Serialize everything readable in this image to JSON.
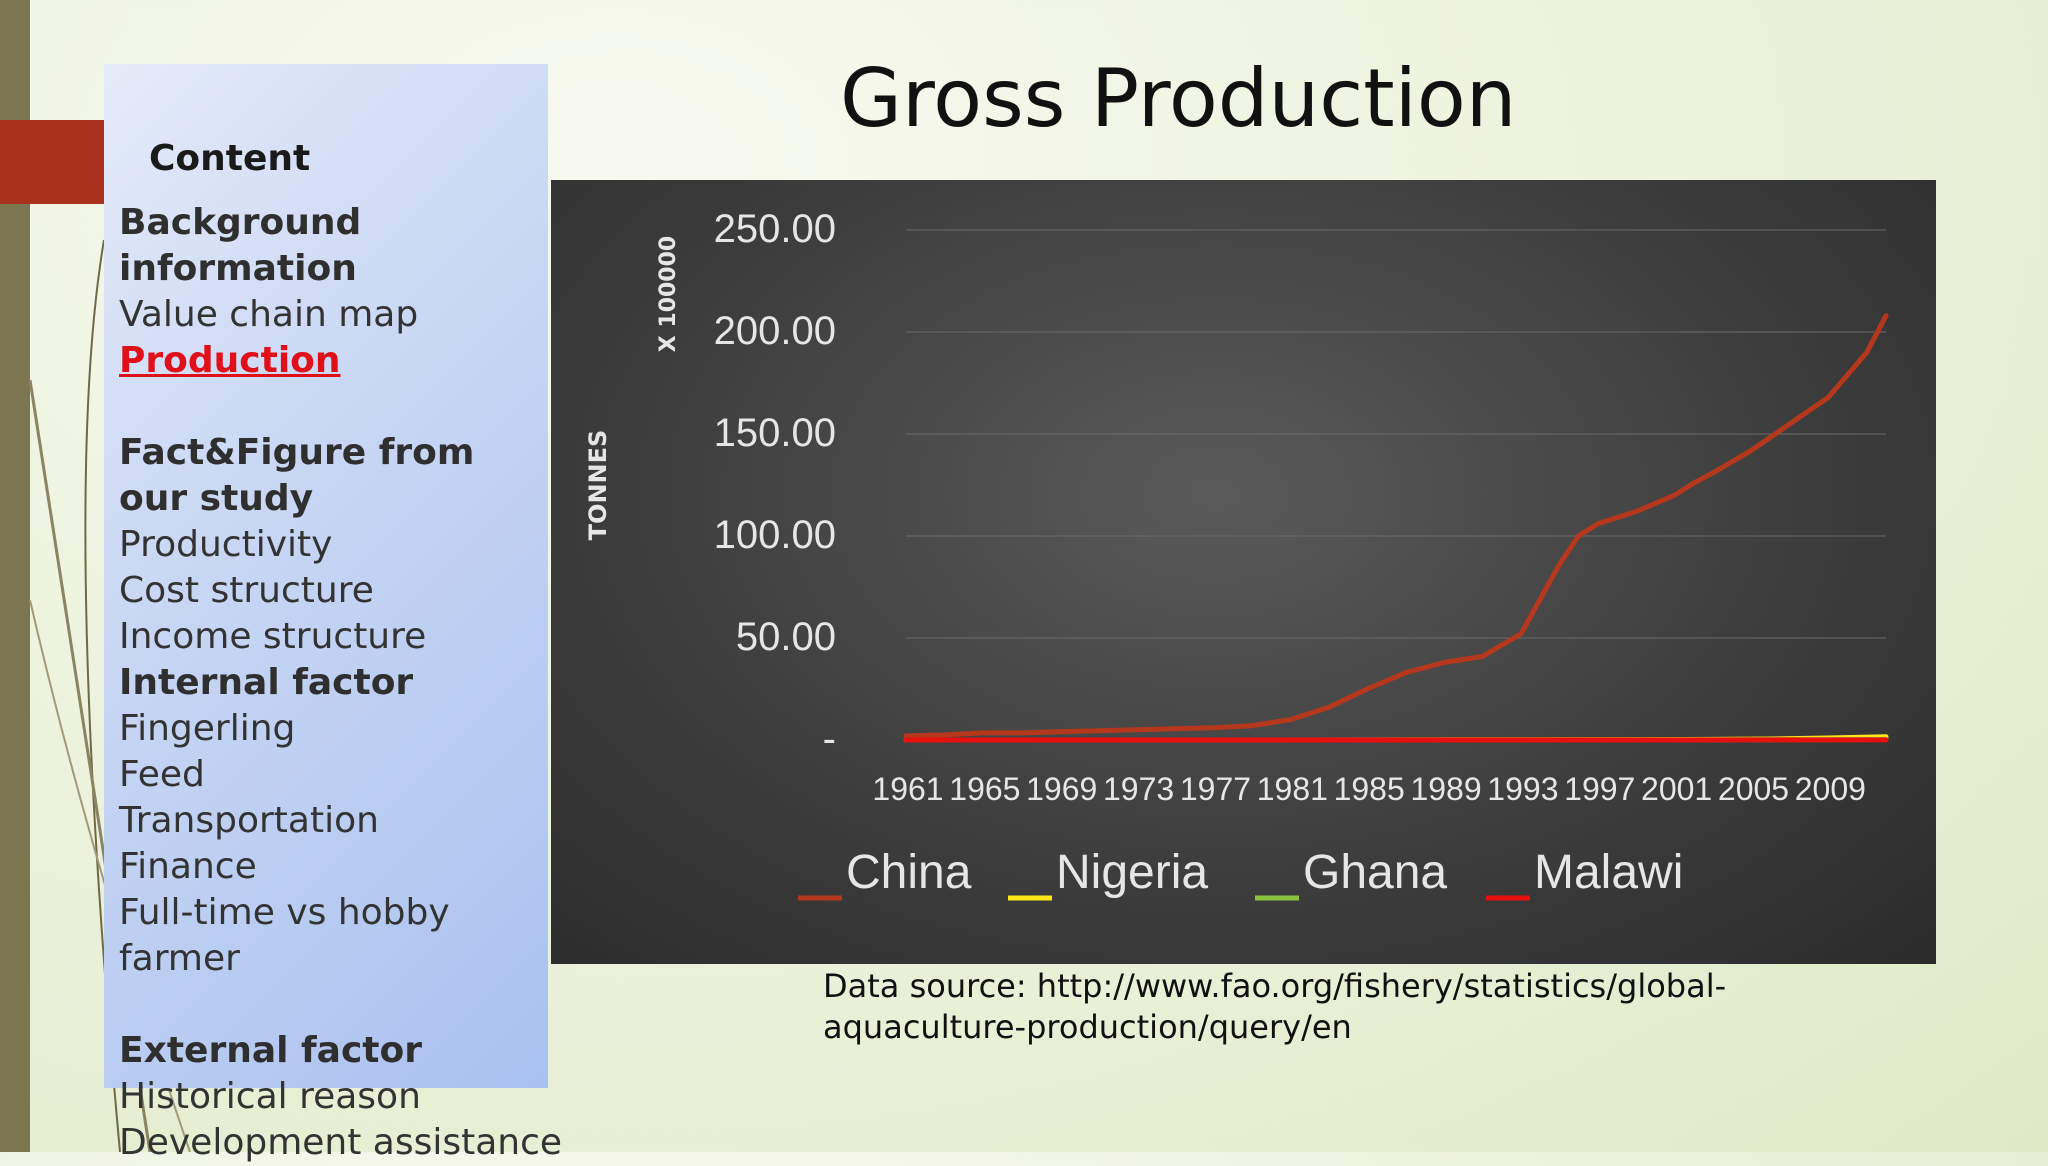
{
  "slide": {
    "title": "Gross Production",
    "data_source": "Data source: http://www.fao.org/fishery/statistics/global-aquaculture-production/query/en"
  },
  "sidebar": {
    "heading": "Content",
    "items": [
      {
        "label": "Background information",
        "style": "bold"
      },
      {
        "label": "Value chain map",
        "style": "normal"
      },
      {
        "label": "Production",
        "style": "active"
      },
      {
        "label": "Fact&Figure from our study",
        "style": "bold"
      },
      {
        "label": "Productivity",
        "style": "normal"
      },
      {
        "label": "Cost structure",
        "style": "normal"
      },
      {
        "label": "Income structure",
        "style": "normal"
      },
      {
        "label": "Internal factor",
        "style": "bold"
      },
      {
        "label": "Fingerling",
        "style": "normal"
      },
      {
        "label": "Feed",
        "style": "normal"
      },
      {
        "label": "Transportation",
        "style": "normal"
      },
      {
        "label": "Finance",
        "style": "normal"
      },
      {
        "label": "Full-time vs hobby farmer",
        "style": "normal"
      },
      {
        "label": "External factor",
        "style": "bold"
      },
      {
        "label": "Historical reason",
        "style": "normal"
      },
      {
        "label": "Development assistance",
        "style": "normal"
      }
    ]
  },
  "colors": {
    "china": "#b5381c",
    "nigeria": "#ffe81a",
    "ghana": "#8ac43f",
    "malawi": "#e8100e",
    "panel_text": "#e6e6e6"
  },
  "chart_data": {
    "type": "line",
    "title": "",
    "ylabel": "TONNES",
    "yunit_label": "X 100000",
    "ylim": [
      0,
      250
    ],
    "yticks": [
      0,
      50,
      100,
      150,
      200,
      250
    ],
    "ytick_labels": [
      "-",
      "50.00",
      "100.00",
      "150.00",
      "200.00",
      "250.00"
    ],
    "xlim": [
      1961,
      2012
    ],
    "xticks": [
      1961,
      1965,
      1969,
      1973,
      1977,
      1981,
      1985,
      1989,
      1993,
      1997,
      2001,
      2005,
      2009
    ],
    "grid": true,
    "legend": "bottom",
    "series": [
      {
        "name": "China",
        "colorKey": "china",
        "x": [
          1961,
          1963,
          1965,
          1967,
          1969,
          1971,
          1973,
          1975,
          1977,
          1979,
          1981,
          1983,
          1985,
          1987,
          1989,
          1991,
          1993,
          1995,
          1996,
          1997,
          1999,
          2001,
          2002,
          2003,
          2005,
          2007,
          2009,
          2011,
          2012
        ],
        "y": [
          2,
          2.5,
          3.5,
          3.5,
          4,
          4.5,
          5,
          5.5,
          6,
          7,
          10,
          16,
          25,
          33,
          38,
          41,
          52,
          86,
          100,
          106,
          112,
          120,
          126,
          131,
          142,
          155,
          168,
          190,
          208
        ]
      },
      {
        "name": "Nigeria",
        "colorKey": "nigeria",
        "x": [
          1961,
          1970,
          1980,
          1990,
          2000,
          2003,
          2006,
          2009,
          2012
        ],
        "y": [
          0,
          0,
          0,
          0.1,
          0.2,
          0.3,
          0.5,
          1.0,
          1.6
        ]
      },
      {
        "name": "Ghana",
        "colorKey": "ghana",
        "x": [
          1961,
          1970,
          1980,
          1990,
          2000,
          2005,
          2010,
          2012
        ],
        "y": [
          0,
          0,
          0,
          0,
          0.05,
          0.1,
          0.2,
          0.3
        ]
      },
      {
        "name": "Malawi",
        "colorKey": "malawi",
        "x": [
          1961,
          1970,
          1980,
          1990,
          2000,
          2005,
          2010,
          2012
        ],
        "y": [
          0,
          0,
          0,
          0,
          0.02,
          0.03,
          0.05,
          0.05
        ]
      }
    ]
  }
}
